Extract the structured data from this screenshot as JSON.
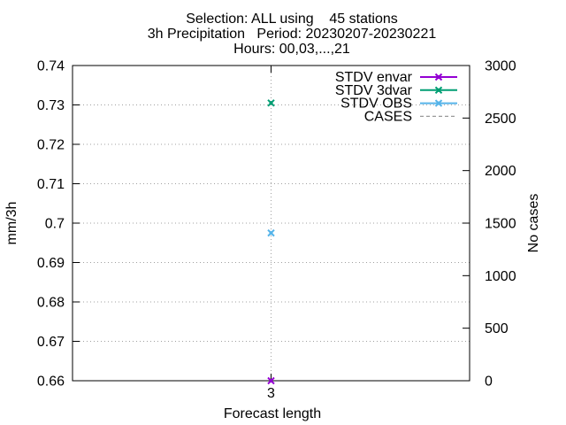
{
  "chart_data": {
    "type": "scatter",
    "title_lines": [
      "Selection: ALL using    45 stations",
      "3h Precipitation   Period: 20230207-20230221",
      "Hours: 00,03,...,21"
    ],
    "xlabel": "Forecast length",
    "ylabel": "mm/3h",
    "y2label": "No cases",
    "x_ticks": [
      "3"
    ],
    "x_values": [
      3
    ],
    "xlim": [
      2,
      4
    ],
    "ylim": [
      0.66,
      0.74
    ],
    "y_ticks": [
      "0.74",
      "0.73",
      "0.72",
      "0.71",
      "0.7",
      "0.69",
      "0.68",
      "0.67",
      "0.66"
    ],
    "y2lim": [
      0,
      3000
    ],
    "y2_ticks": [
      "3000",
      "2500",
      "2000",
      "1500",
      "1000",
      "500",
      "0"
    ],
    "grid": true,
    "legend_position": "top-right",
    "series": [
      {
        "name": "STDV envar",
        "axis": "y",
        "color": "#9400d3",
        "style": "line-points",
        "marker": "x",
        "values": [
          0.66
        ]
      },
      {
        "name": "STDV 3dvar",
        "axis": "y",
        "color": "#009e73",
        "style": "line-points",
        "marker": "x",
        "values": [
          0.7305
        ]
      },
      {
        "name": "STDV OBS",
        "axis": "y",
        "color": "#56b4e9",
        "style": "line-points",
        "marker": "x",
        "values": [
          0.6975
        ]
      },
      {
        "name": "CASES",
        "axis": "y2",
        "color": "#999999",
        "style": "dashed",
        "marker": "none",
        "values": []
      }
    ]
  }
}
